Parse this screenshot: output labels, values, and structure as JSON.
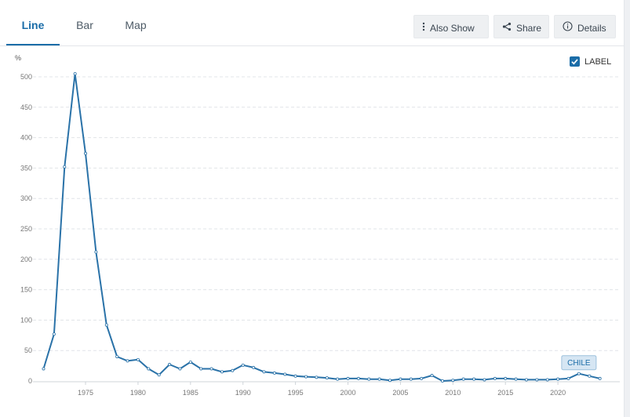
{
  "tabs": [
    {
      "label": "Line",
      "active": true
    },
    {
      "label": "Bar",
      "active": false
    },
    {
      "label": "Map",
      "active": false
    }
  ],
  "toolbar": {
    "also_show_label": "Also Show",
    "share_label": "Share",
    "details_label": "Details"
  },
  "legend": {
    "label": "LABEL",
    "checked": true
  },
  "colors": {
    "accent": "#1b6da8",
    "series": "#2a72a8",
    "grid": "#e1e4e8"
  },
  "chart_data": {
    "type": "line",
    "unit_label": "%",
    "xlim": [
      1971,
      2024
    ],
    "ylim": [
      0,
      500
    ],
    "x_ticks": [
      1975,
      1980,
      1985,
      1990,
      1995,
      2000,
      2005,
      2010,
      2015,
      2020
    ],
    "y_ticks": [
      0,
      50,
      100,
      150,
      200,
      250,
      300,
      350,
      400,
      450,
      500
    ],
    "grid": true,
    "legend_position": "top-right",
    "series": [
      {
        "name": "CHILE",
        "x": [
          1971,
          1972,
          1973,
          1974,
          1975,
          1976,
          1977,
          1978,
          1979,
          1980,
          1981,
          1982,
          1983,
          1984,
          1985,
          1986,
          1987,
          1988,
          1989,
          1990,
          1991,
          1992,
          1993,
          1994,
          1995,
          1996,
          1997,
          1998,
          1999,
          2000,
          2001,
          2002,
          2003,
          2004,
          2005,
          2006,
          2007,
          2008,
          2009,
          2010,
          2011,
          2012,
          2013,
          2014,
          2015,
          2016,
          2017,
          2018,
          2019,
          2020,
          2021,
          2022,
          2023,
          2024
        ],
        "values": [
          20,
          77,
          352,
          505,
          374,
          212,
          92,
          40,
          33,
          35,
          20,
          10,
          27,
          20,
          31,
          20,
          20,
          15,
          17,
          26,
          22,
          15,
          13,
          11,
          8,
          7,
          6,
          5,
          3,
          4,
          4,
          3,
          3,
          1,
          3,
          3,
          4,
          9,
          0,
          1,
          3,
          3,
          2,
          4,
          4,
          3,
          2,
          2,
          2,
          3,
          4,
          12,
          8,
          4
        ]
      }
    ]
  }
}
